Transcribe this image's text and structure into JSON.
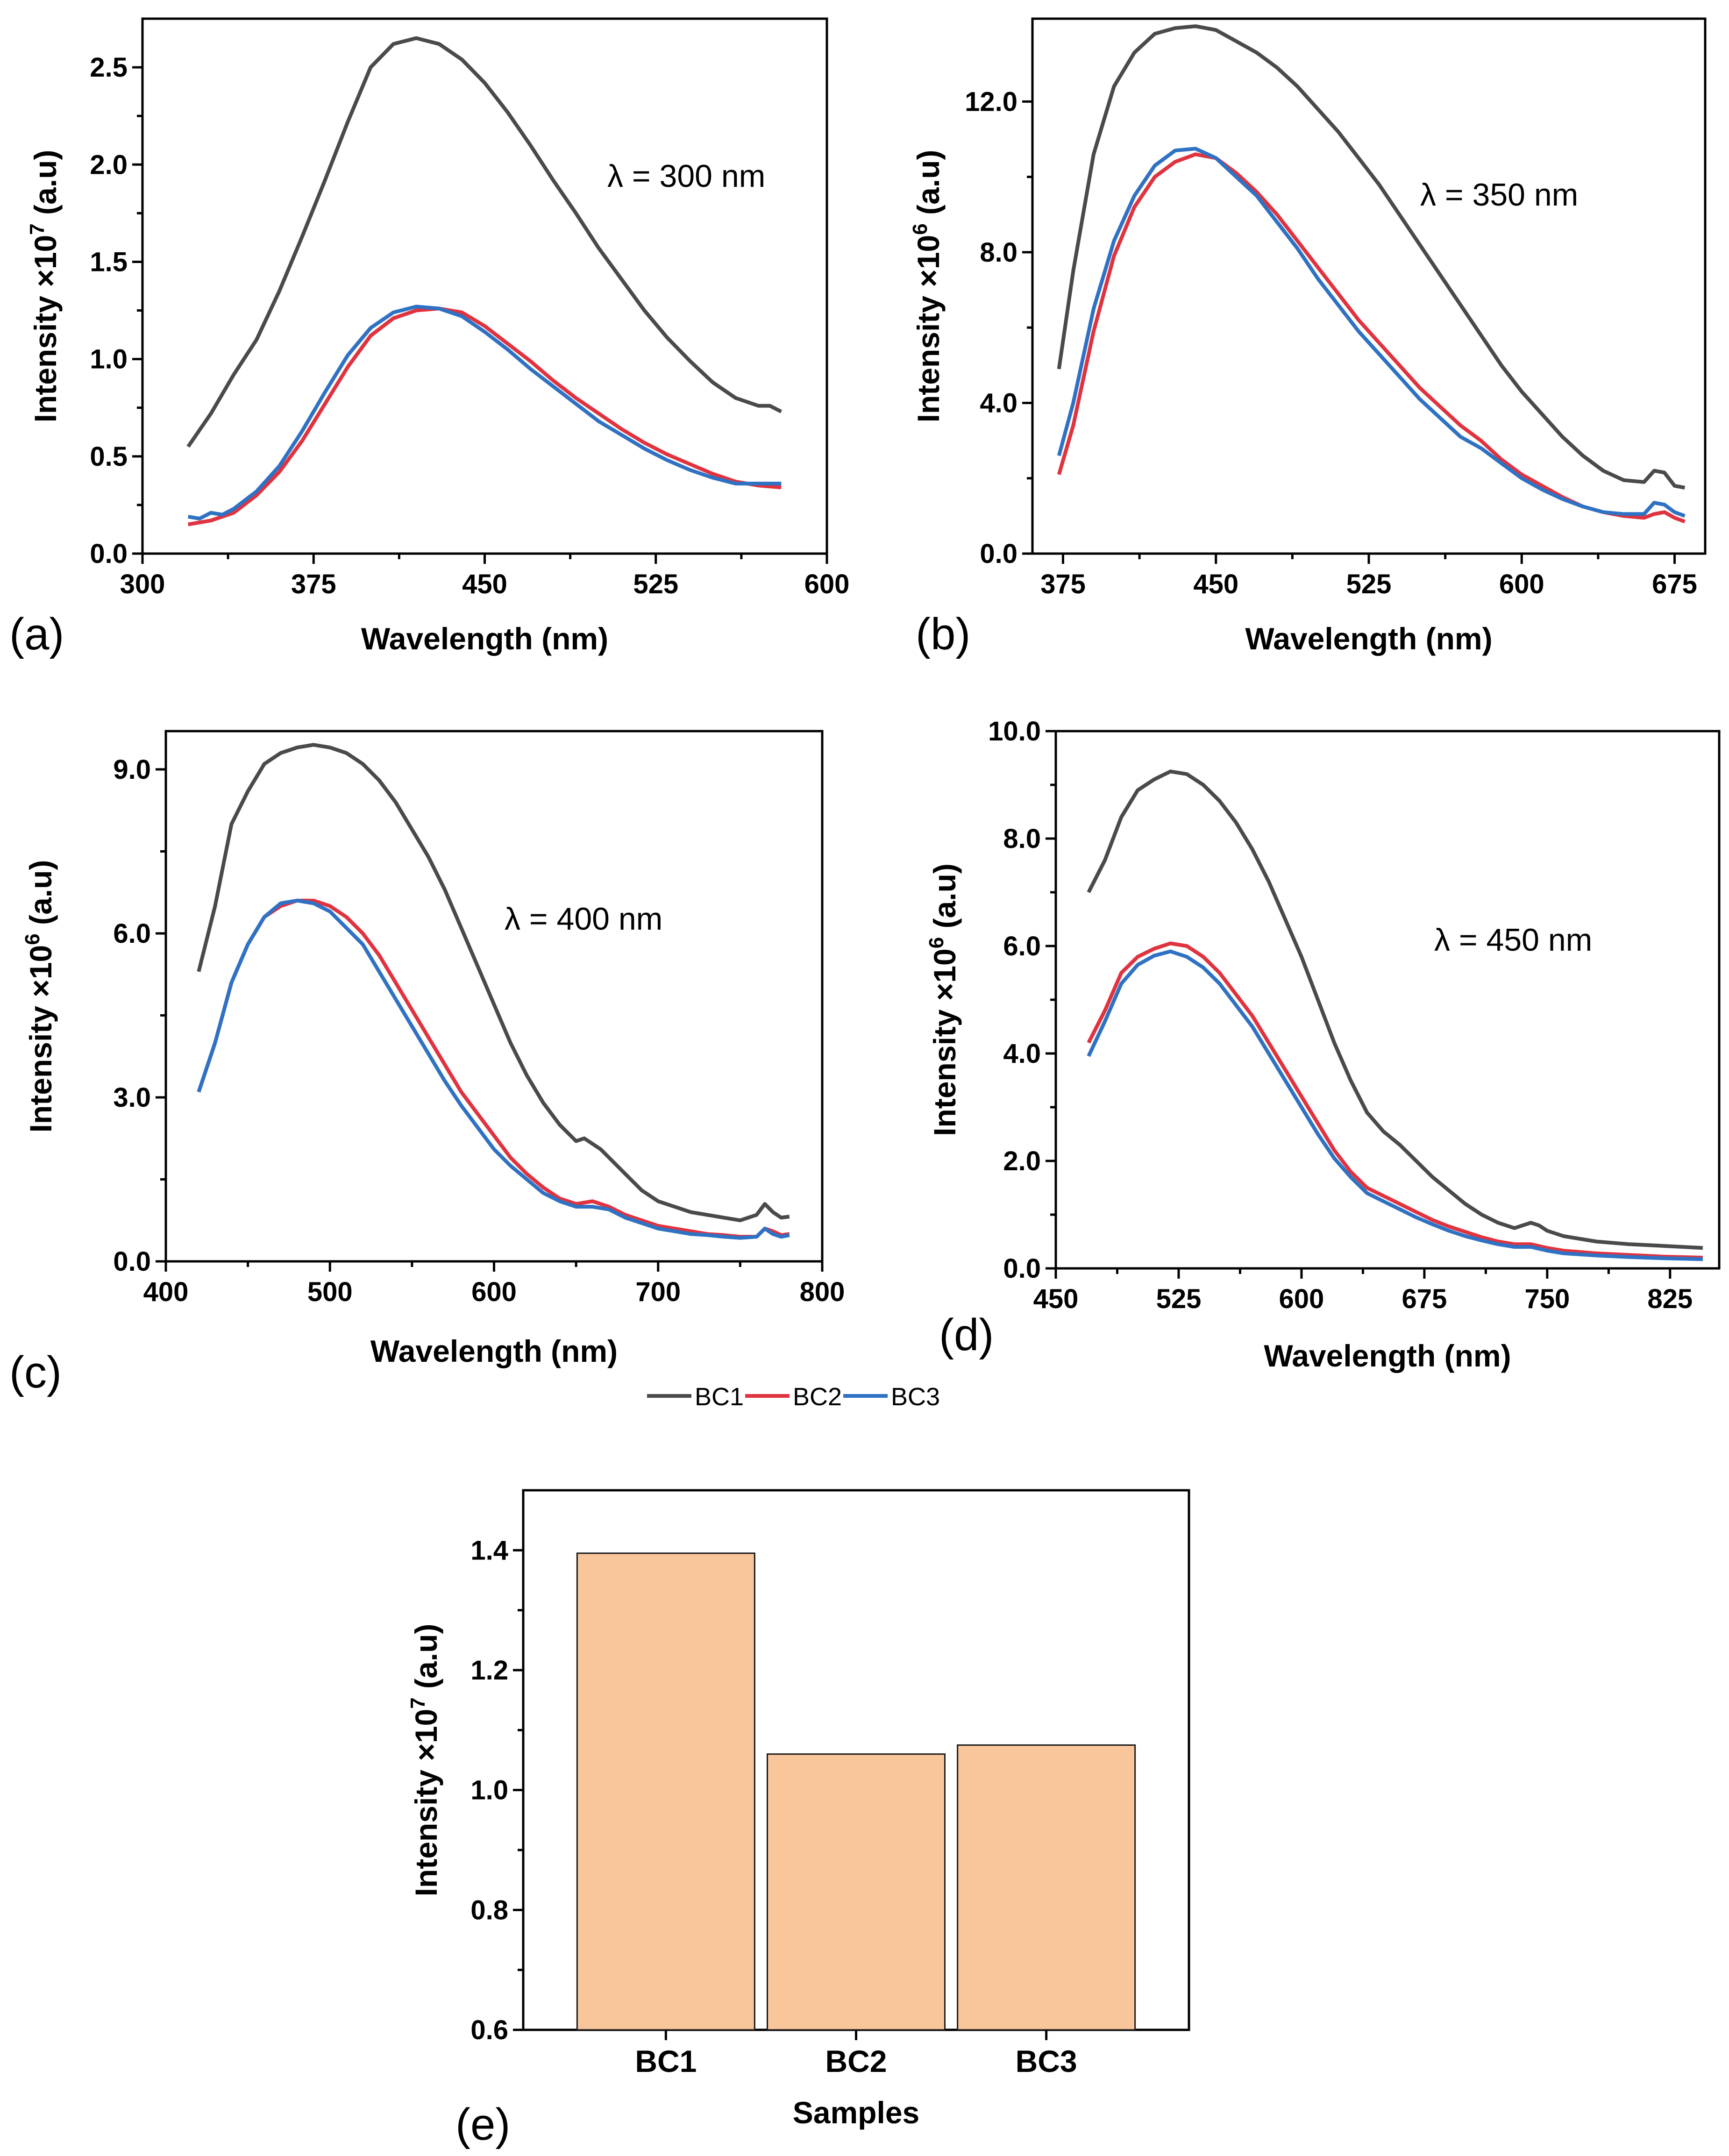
{
  "figure": {
    "legend": [
      {
        "name": "BC1",
        "color": "#4a4a4a"
      },
      {
        "name": "BC2",
        "color": "#e0333f"
      },
      {
        "name": "BC3",
        "color": "#2f72c4"
      }
    ]
  },
  "chart_data": [
    {
      "id": "a",
      "panel_label": "(a)",
      "type": "line",
      "annotation": "λ = 300 nm",
      "xlabel": "Wavelength (nm)",
      "ylabel_main": "Intensity ×10",
      "ylabel_exp": "7",
      "ylabel_unit": " (a.u)",
      "xlim": [
        300,
        600
      ],
      "ylim": [
        0,
        2.75
      ],
      "xticks": [
        300,
        375,
        450,
        525,
        600
      ],
      "xtick_labels": [
        "300",
        "375",
        "450",
        "525",
        "600"
      ],
      "yticks": [
        0,
        0.5,
        1.0,
        1.5,
        2.0,
        2.5
      ],
      "ytick_labels": [
        "0.0",
        "0.5",
        "1.0",
        "1.5",
        "2.0",
        "2.5"
      ],
      "series": [
        {
          "name": "BC1",
          "x": [
            320,
            330,
            340,
            350,
            360,
            370,
            380,
            390,
            400,
            410,
            420,
            430,
            440,
            450,
            460,
            470,
            480,
            490,
            500,
            510,
            520,
            530,
            540,
            550,
            560,
            570,
            575,
            580
          ],
          "y": [
            0.55,
            0.72,
            0.92,
            1.1,
            1.35,
            1.63,
            1.92,
            2.22,
            2.5,
            2.62,
            2.65,
            2.62,
            2.54,
            2.42,
            2.27,
            2.1,
            1.92,
            1.75,
            1.57,
            1.41,
            1.25,
            1.11,
            0.99,
            0.88,
            0.8,
            0.76,
            0.76,
            0.73
          ]
        },
        {
          "name": "BC2",
          "x": [
            320,
            330,
            340,
            350,
            360,
            370,
            380,
            390,
            400,
            410,
            420,
            430,
            440,
            450,
            460,
            470,
            480,
            490,
            500,
            510,
            520,
            530,
            540,
            550,
            560,
            570,
            580
          ],
          "y": [
            0.15,
            0.17,
            0.21,
            0.3,
            0.42,
            0.58,
            0.77,
            0.96,
            1.12,
            1.21,
            1.25,
            1.26,
            1.24,
            1.17,
            1.08,
            0.99,
            0.89,
            0.8,
            0.72,
            0.64,
            0.57,
            0.51,
            0.46,
            0.41,
            0.37,
            0.35,
            0.34
          ]
        },
        {
          "name": "BC3",
          "x": [
            320,
            325,
            330,
            335,
            340,
            350,
            360,
            370,
            380,
            390,
            400,
            410,
            420,
            430,
            440,
            450,
            460,
            470,
            480,
            490,
            500,
            510,
            520,
            530,
            540,
            550,
            560,
            570,
            580
          ],
          "y": [
            0.19,
            0.18,
            0.21,
            0.2,
            0.23,
            0.32,
            0.45,
            0.63,
            0.83,
            1.02,
            1.16,
            1.24,
            1.27,
            1.26,
            1.22,
            1.14,
            1.05,
            0.95,
            0.86,
            0.77,
            0.68,
            0.61,
            0.54,
            0.48,
            0.43,
            0.39,
            0.36,
            0.36,
            0.36
          ]
        }
      ]
    },
    {
      "id": "b",
      "panel_label": "(b)",
      "type": "line",
      "annotation": "λ = 350 nm",
      "xlabel": "Wavelength (nm)",
      "ylabel_main": "Intensity ×10",
      "ylabel_exp": "6",
      "ylabel_unit": " (a.u)",
      "xlim": [
        360,
        690
      ],
      "ylim": [
        0,
        14.2
      ],
      "xticks": [
        375,
        450,
        525,
        600,
        675
      ],
      "xtick_labels": [
        "375",
        "450",
        "525",
        "600",
        "675"
      ],
      "yticks": [
        0,
        4,
        8,
        12
      ],
      "ytick_labels": [
        "0.0",
        "4.0",
        "8.0",
        "12.0"
      ],
      "series": [
        {
          "name": "BC1",
          "x": [
            373,
            380,
            390,
            400,
            410,
            420,
            430,
            440,
            450,
            460,
            470,
            480,
            490,
            500,
            510,
            520,
            530,
            540,
            550,
            560,
            570,
            580,
            590,
            600,
            610,
            620,
            630,
            640,
            650,
            660,
            665,
            670,
            675,
            680
          ],
          "y": [
            4.9,
            7.5,
            10.6,
            12.4,
            13.3,
            13.8,
            13.95,
            14.0,
            13.9,
            13.6,
            13.3,
            12.9,
            12.4,
            11.8,
            11.2,
            10.5,
            9.8,
            9.0,
            8.2,
            7.4,
            6.6,
            5.8,
            5.0,
            4.3,
            3.7,
            3.1,
            2.6,
            2.2,
            1.95,
            1.9,
            2.2,
            2.15,
            1.8,
            1.75
          ]
        },
        {
          "name": "BC2",
          "x": [
            373,
            380,
            390,
            400,
            410,
            420,
            430,
            440,
            450,
            460,
            470,
            480,
            490,
            500,
            510,
            520,
            530,
            540,
            550,
            560,
            570,
            580,
            590,
            600,
            610,
            620,
            630,
            640,
            650,
            660,
            665,
            670,
            675,
            680
          ],
          "y": [
            2.1,
            3.4,
            5.9,
            7.9,
            9.2,
            10.0,
            10.4,
            10.6,
            10.5,
            10.1,
            9.6,
            9.0,
            8.3,
            7.6,
            6.9,
            6.2,
            5.6,
            5.0,
            4.4,
            3.9,
            3.4,
            3.0,
            2.5,
            2.1,
            1.8,
            1.5,
            1.25,
            1.1,
            1.0,
            0.95,
            1.05,
            1.1,
            0.95,
            0.85
          ]
        },
        {
          "name": "BC3",
          "x": [
            373,
            380,
            390,
            400,
            410,
            420,
            430,
            440,
            450,
            460,
            470,
            480,
            490,
            500,
            510,
            520,
            530,
            540,
            550,
            560,
            570,
            580,
            590,
            600,
            610,
            620,
            630,
            640,
            650,
            660,
            665,
            670,
            675,
            680
          ],
          "y": [
            2.6,
            4.0,
            6.5,
            8.3,
            9.5,
            10.3,
            10.7,
            10.75,
            10.5,
            10.0,
            9.5,
            8.8,
            8.1,
            7.3,
            6.6,
            5.9,
            5.3,
            4.7,
            4.1,
            3.6,
            3.1,
            2.8,
            2.4,
            2.0,
            1.7,
            1.45,
            1.25,
            1.1,
            1.05,
            1.05,
            1.35,
            1.3,
            1.1,
            1.0
          ]
        }
      ]
    },
    {
      "id": "c",
      "panel_label": "(c)",
      "type": "line",
      "annotation": "λ = 400 nm",
      "xlabel": "Wavelength (nm)",
      "ylabel_main": "Intensity ×10",
      "ylabel_exp": "6",
      "ylabel_unit": " (a.u)",
      "xlim": [
        400,
        800
      ],
      "ylim": [
        0,
        9.7
      ],
      "xticks": [
        400,
        500,
        600,
        700,
        800
      ],
      "xtick_labels": [
        "400",
        "500",
        "600",
        "700",
        "800"
      ],
      "yticks": [
        0,
        3,
        6,
        9
      ],
      "ytick_labels": [
        "0.0",
        "3.0",
        "6.0",
        "9.0"
      ],
      "series": [
        {
          "name": "BC1",
          "x": [
            420,
            430,
            440,
            450,
            460,
            470,
            480,
            490,
            500,
            510,
            520,
            530,
            540,
            550,
            560,
            570,
            580,
            590,
            600,
            610,
            620,
            630,
            640,
            650,
            655,
            660,
            665,
            670,
            680,
            690,
            700,
            710,
            720,
            730,
            740,
            750,
            760,
            765,
            770,
            775,
            780
          ],
          "y": [
            5.3,
            6.5,
            8.0,
            8.6,
            9.1,
            9.3,
            9.4,
            9.45,
            9.4,
            9.3,
            9.1,
            8.8,
            8.4,
            7.9,
            7.4,
            6.8,
            6.1,
            5.4,
            4.7,
            4.0,
            3.4,
            2.9,
            2.5,
            2.2,
            2.25,
            2.15,
            2.05,
            1.9,
            1.6,
            1.3,
            1.1,
            1.0,
            0.9,
            0.85,
            0.8,
            0.75,
            0.85,
            1.05,
            0.9,
            0.8,
            0.82
          ]
        },
        {
          "name": "BC2",
          "x": [
            420,
            430,
            440,
            450,
            460,
            470,
            480,
            490,
            500,
            510,
            520,
            530,
            540,
            550,
            560,
            570,
            580,
            590,
            600,
            610,
            620,
            630,
            640,
            650,
            660,
            670,
            680,
            690,
            700,
            710,
            720,
            730,
            740,
            750,
            760,
            765,
            770,
            775,
            780
          ],
          "y": [
            3.1,
            4.0,
            5.1,
            5.8,
            6.3,
            6.5,
            6.6,
            6.6,
            6.5,
            6.3,
            6.0,
            5.6,
            5.1,
            4.6,
            4.1,
            3.6,
            3.1,
            2.7,
            2.3,
            1.9,
            1.6,
            1.35,
            1.15,
            1.05,
            1.1,
            1.0,
            0.85,
            0.75,
            0.65,
            0.6,
            0.55,
            0.5,
            0.48,
            0.45,
            0.45,
            0.6,
            0.55,
            0.48,
            0.5
          ]
        },
        {
          "name": "BC3",
          "x": [
            420,
            430,
            440,
            450,
            460,
            470,
            480,
            490,
            500,
            510,
            520,
            530,
            540,
            550,
            560,
            570,
            580,
            590,
            600,
            610,
            620,
            630,
            640,
            650,
            660,
            670,
            680,
            690,
            700,
            710,
            720,
            730,
            740,
            750,
            760,
            765,
            770,
            775,
            780
          ],
          "y": [
            3.1,
            4.0,
            5.1,
            5.8,
            6.3,
            6.55,
            6.6,
            6.55,
            6.4,
            6.1,
            5.8,
            5.3,
            4.8,
            4.3,
            3.8,
            3.3,
            2.85,
            2.45,
            2.05,
            1.75,
            1.5,
            1.25,
            1.1,
            1.0,
            1.0,
            0.95,
            0.8,
            0.7,
            0.6,
            0.55,
            0.5,
            0.48,
            0.45,
            0.43,
            0.45,
            0.6,
            0.5,
            0.45,
            0.48
          ]
        }
      ]
    },
    {
      "id": "d",
      "panel_label": "(d)",
      "type": "line",
      "annotation": "λ = 450 nm",
      "xlabel": "Wavelength (nm)",
      "ylabel_main": "Intensity ×10",
      "ylabel_exp": "6",
      "ylabel_unit": " (a.u)",
      "xlim": [
        450,
        855
      ],
      "ylim": [
        0,
        10
      ],
      "xticks": [
        450,
        525,
        600,
        675,
        750,
        825
      ],
      "xtick_labels": [
        "450",
        "525",
        "600",
        "675",
        "750",
        "825"
      ],
      "yticks": [
        0,
        2,
        4,
        6,
        8,
        10
      ],
      "ytick_labels": [
        "0.0",
        "2.0",
        "4.0",
        "6.0",
        "8.0",
        "10.0"
      ],
      "series": [
        {
          "name": "BC1",
          "x": [
            470,
            480,
            490,
            500,
            510,
            520,
            530,
            540,
            550,
            560,
            570,
            580,
            590,
            600,
            610,
            620,
            630,
            640,
            650,
            660,
            670,
            680,
            690,
            700,
            710,
            720,
            730,
            740,
            745,
            750,
            760,
            780,
            800,
            820,
            845
          ],
          "y": [
            7.0,
            7.6,
            8.4,
            8.9,
            9.1,
            9.25,
            9.2,
            9.0,
            8.7,
            8.3,
            7.8,
            7.2,
            6.5,
            5.8,
            5.0,
            4.2,
            3.5,
            2.9,
            2.55,
            2.3,
            2.0,
            1.7,
            1.45,
            1.2,
            1.0,
            0.85,
            0.75,
            0.85,
            0.8,
            0.7,
            0.6,
            0.5,
            0.45,
            0.42,
            0.38
          ]
        },
        {
          "name": "BC2",
          "x": [
            470,
            480,
            490,
            500,
            510,
            520,
            530,
            540,
            550,
            560,
            570,
            580,
            590,
            600,
            610,
            620,
            630,
            640,
            650,
            660,
            670,
            680,
            690,
            700,
            710,
            720,
            730,
            740,
            750,
            760,
            780,
            800,
            820,
            845
          ],
          "y": [
            4.2,
            4.8,
            5.5,
            5.8,
            5.95,
            6.05,
            6.0,
            5.8,
            5.5,
            5.1,
            4.7,
            4.2,
            3.7,
            3.2,
            2.7,
            2.2,
            1.8,
            1.5,
            1.35,
            1.2,
            1.05,
            0.9,
            0.78,
            0.68,
            0.58,
            0.5,
            0.45,
            0.45,
            0.38,
            0.33,
            0.28,
            0.25,
            0.22,
            0.2
          ]
        },
        {
          "name": "BC3",
          "x": [
            470,
            480,
            490,
            500,
            510,
            520,
            530,
            540,
            550,
            560,
            570,
            580,
            590,
            600,
            610,
            620,
            630,
            640,
            650,
            660,
            670,
            680,
            690,
            700,
            710,
            720,
            730,
            740,
            750,
            760,
            780,
            800,
            820,
            845
          ],
          "y": [
            3.95,
            4.6,
            5.3,
            5.65,
            5.82,
            5.9,
            5.8,
            5.6,
            5.3,
            4.9,
            4.5,
            4.0,
            3.5,
            3.0,
            2.5,
            2.05,
            1.7,
            1.4,
            1.25,
            1.1,
            0.95,
            0.82,
            0.7,
            0.6,
            0.52,
            0.45,
            0.4,
            0.4,
            0.33,
            0.28,
            0.24,
            0.21,
            0.19,
            0.17
          ]
        }
      ]
    },
    {
      "id": "e",
      "panel_label": "(e)",
      "type": "bar",
      "xlabel": "Samples",
      "ylabel_main": "Intensity ×10",
      "ylabel_exp": "7",
      "ylabel_unit": " (a.u)",
      "categories": [
        "BC1",
        "BC2",
        "BC3"
      ],
      "values": [
        1.395,
        1.06,
        1.075
      ],
      "bar_color": "#f9c69b",
      "ylim": [
        0.6,
        1.5
      ],
      "yticks": [
        0.6,
        0.8,
        1.0,
        1.2,
        1.4
      ],
      "ytick_labels": [
        "0.6",
        "0.8",
        "1.0",
        "1.2",
        "1.4"
      ]
    }
  ]
}
